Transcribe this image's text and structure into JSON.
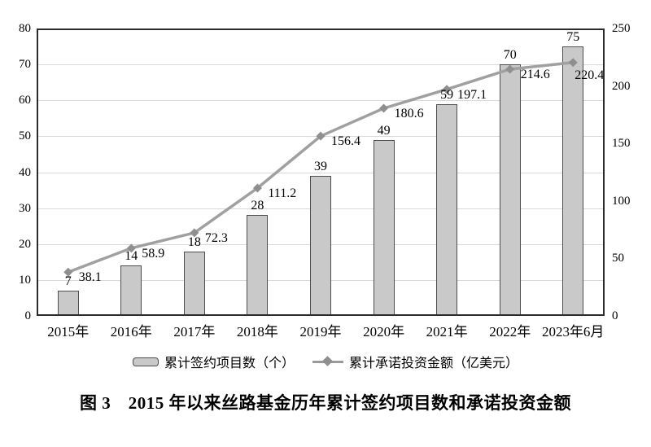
{
  "chart_data": {
    "type": "bar+line",
    "categories": [
      "2015年",
      "2016年",
      "2017年",
      "2018年",
      "2019年",
      "2020年",
      "2021年",
      "2022年",
      "2023年6月"
    ],
    "series": [
      {
        "name": "累计签约项目数（个）",
        "type": "bar",
        "axis": "left",
        "values": [
          7,
          14,
          18,
          28,
          39,
          49,
          59,
          70,
          75
        ]
      },
      {
        "name": "累计承诺投资金额（亿美元）",
        "type": "line",
        "axis": "right",
        "values": [
          38.1,
          58.9,
          72.3,
          111.2,
          156.4,
          180.6,
          197.1,
          214.6,
          220.4
        ]
      }
    ],
    "left_axis": {
      "min": 0,
      "max": 80,
      "step": 10,
      "ticks": [
        "0",
        "10",
        "20",
        "30",
        "40",
        "50",
        "60",
        "70",
        "80"
      ]
    },
    "right_axis": {
      "min": 0,
      "max": 250,
      "step": 50,
      "ticks": [
        "0",
        "50",
        "100",
        "150",
        "200",
        "250"
      ]
    },
    "grid": true,
    "legend_position": "bottom",
    "title": "图 3　2015 年以来丝路基金历年累计签约项目数和承诺投资金额"
  },
  "legend": {
    "bar_label": "累计签约项目数（个）",
    "line_label": "累计承诺投资金额（亿美元）"
  },
  "caption": "图 3　2015 年以来丝路基金历年累计签约项目数和承诺投资金额",
  "colors": {
    "bar_fill": "#c9c9c9",
    "bar_border": "#4d4d4d",
    "line": "#a0a0a0",
    "marker": "#8f8f8f",
    "grid": "#d9d9d9",
    "axis": "#2b2b2b",
    "text": "#000000"
  }
}
